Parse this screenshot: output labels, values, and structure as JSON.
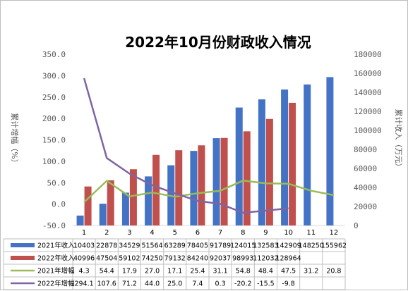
{
  "chart_data": {
    "type": "bar",
    "title": "2022年10月份财政收入情况",
    "ylabel_left": "累计增幅（%）",
    "ylabel_right": "累计收入（万元）",
    "ylim_left": [
      -50,
      350
    ],
    "ylim_right": [
      0,
      180000
    ],
    "yticks_left": [
      "350.0",
      "300.0",
      "250.0",
      "200.0",
      "150.0",
      "100.0",
      "50.0",
      "0.0",
      "-50.0"
    ],
    "yticks_right": [
      "180000",
      "160000",
      "140000",
      "120000",
      "100000",
      "80000",
      "60000",
      "40000",
      "20000",
      "0"
    ],
    "categories": [
      "1",
      "2",
      "3",
      "4",
      "5",
      "6",
      "7",
      "8",
      "9",
      "10",
      "11",
      "12"
    ],
    "grid": false,
    "legend": "data-table",
    "bar_series": [
      {
        "name": "2021年收入",
        "color": "#4472c4",
        "axis": "right",
        "values": [
          10403,
          22878,
          34529,
          51564,
          63289,
          78405,
          91789,
          124015,
          132583,
          142909,
          148250,
          155962
        ]
      },
      {
        "name": "2022年收入",
        "color": "#c0504d",
        "axis": "right",
        "values": [
          40996,
          47504,
          59102,
          74250,
          79132,
          84240,
          92037,
          98993,
          112032,
          128964,
          null,
          null
        ]
      }
    ],
    "line_series": [
      {
        "name": "2021年增幅",
        "color": "#9bbb59",
        "axis": "left",
        "values": [
          4.3,
          54.4,
          17.9,
          27.0,
          17.1,
          25.4,
          31.1,
          54.8,
          48.4,
          47.5,
          31.2,
          20.8
        ]
      },
      {
        "name": "2022年增幅",
        "color": "#8064a2",
        "axis": "left",
        "values": [
          294.1,
          107.6,
          71.2,
          44.0,
          25.0,
          7.4,
          0.3,
          -20.2,
          -15.5,
          -9.8,
          null,
          null
        ]
      }
    ],
    "table_rows": [
      {
        "label": "2021年收入",
        "cells": [
          "10403",
          "22878",
          "34529",
          "51564",
          "63289",
          "78405",
          "91789",
          "124015",
          "132583",
          "142909",
          "148250",
          "155962"
        ]
      },
      {
        "label": "2022年收入",
        "cells": [
          "40996",
          "47504",
          "59102",
          "74250",
          "79132",
          "84240",
          "92037",
          "98993",
          "112032",
          "128964",
          "",
          ""
        ]
      },
      {
        "label": "2021年增幅",
        "cells": [
          "4.3",
          "54.4",
          "17.9",
          "27.0",
          "17.1",
          "25.4",
          "31.1",
          "54.8",
          "48.4",
          "47.5",
          "31.2",
          "20.8"
        ]
      },
      {
        "label": "2022年增幅",
        "cells": [
          "294.1",
          "107.6",
          "71.2",
          "44.0",
          "25.0",
          "7.4",
          "0.3",
          "-20.2",
          "-15.5",
          "-9.8",
          "",
          ""
        ]
      }
    ]
  }
}
